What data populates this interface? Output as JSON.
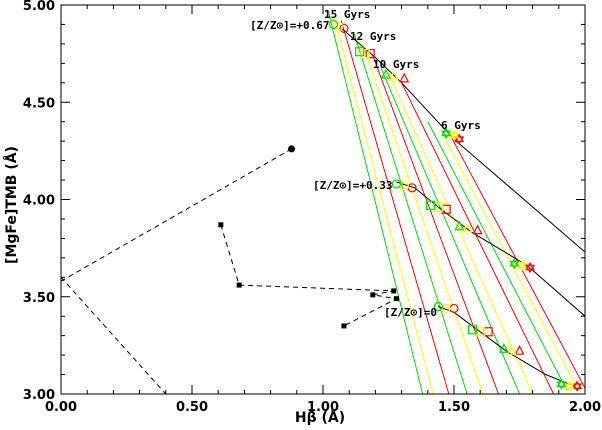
{
  "chart_data": {
    "type": "scatter",
    "xlabel": "Hβ (Å)",
    "ylabel": "[MgFe]TMB (Å)",
    "xlim": [
      0.0,
      2.0
    ],
    "ylim": [
      3.0,
      5.0
    ],
    "x_ticks": [
      "0.00",
      "0.50",
      "1.00",
      "1.50",
      "2.00"
    ],
    "y_ticks": [
      "3.00",
      "3.50",
      "4.00",
      "4.50",
      "5.00"
    ],
    "grid": false,
    "annotations": {
      "age_15": "15 Gyrs",
      "age_12": "12 Gyrs",
      "age_10": "10 Gyrs",
      "age_6": "6 Gyrs",
      "met_067": "[Z/Z⊙]=+0.67",
      "met_033": "[Z/Z⊙]=+0.33",
      "met_0": "[Z/Z⊙]=0"
    },
    "colors": {
      "red": "#ff0000",
      "yellow": "#ffff00",
      "green": "#00e000",
      "black": "#000000"
    },
    "model_lines": [
      {
        "color": "#00e000",
        "points": [
          [
            1.02,
            4.97
          ],
          [
            1.38,
            3.0
          ]
        ]
      },
      {
        "color": "#ffff00",
        "points": [
          [
            1.04,
            4.95
          ],
          [
            1.42,
            3.0
          ]
        ]
      },
      {
        "color": "#ff0000",
        "points": [
          [
            1.07,
            4.92
          ],
          [
            1.48,
            3.0
          ]
        ]
      },
      {
        "color": "#00e000",
        "points": [
          [
            1.12,
            4.85
          ],
          [
            1.55,
            3.0
          ]
        ]
      },
      {
        "color": "#ffff00",
        "points": [
          [
            1.15,
            4.8
          ],
          [
            1.61,
            3.0
          ]
        ]
      },
      {
        "color": "#ff0000",
        "points": [
          [
            1.19,
            4.74
          ],
          [
            1.67,
            3.0
          ]
        ]
      },
      {
        "color": "#00e000",
        "points": [
          [
            1.22,
            4.68
          ],
          [
            1.75,
            3.0
          ]
        ]
      },
      {
        "color": "#ffff00",
        "points": [
          [
            1.25,
            4.65
          ],
          [
            1.8,
            3.0
          ]
        ]
      },
      {
        "color": "#ff0000",
        "points": [
          [
            1.3,
            4.6
          ],
          [
            1.88,
            3.0
          ]
        ]
      },
      {
        "color": "#00e000",
        "points": [
          [
            1.4,
            4.4
          ],
          [
            1.93,
            3.02
          ]
        ]
      },
      {
        "color": "#ffff00",
        "points": [
          [
            1.45,
            4.35
          ],
          [
            1.97,
            3.03
          ]
        ]
      },
      {
        "color": "#ff0000",
        "points": [
          [
            1.49,
            4.32
          ],
          [
            2.0,
            3.03
          ]
        ]
      }
    ],
    "iso_lines": [
      {
        "color": "#000000",
        "points": [
          [
            1.07,
            4.88
          ],
          [
            1.2,
            4.73
          ],
          [
            1.3,
            4.6
          ],
          [
            1.5,
            4.31
          ],
          [
            2.0,
            3.73
          ]
        ]
      },
      {
        "color": "#000000",
        "points": [
          [
            1.28,
            4.09
          ],
          [
            1.35,
            4.06
          ],
          [
            1.45,
            3.95
          ],
          [
            1.57,
            3.83
          ],
          [
            1.78,
            3.66
          ],
          [
            2.0,
            3.4
          ]
        ]
      },
      {
        "color": "#000000",
        "points": [
          [
            1.44,
            3.45
          ],
          [
            1.5,
            3.42
          ],
          [
            1.6,
            3.32
          ],
          [
            1.7,
            3.22
          ],
          [
            1.85,
            3.1
          ],
          [
            1.96,
            3.04
          ]
        ]
      }
    ],
    "model_markers": [
      {
        "shape": "circle",
        "color": "#ff0000",
        "x": 1.08,
        "y": 4.88
      },
      {
        "shape": "square",
        "color": "#ff0000",
        "x": 1.18,
        "y": 4.75
      },
      {
        "shape": "triangle",
        "color": "#ff0000",
        "x": 1.31,
        "y": 4.62
      },
      {
        "shape": "star",
        "color": "#ff0000",
        "x": 1.52,
        "y": 4.31
      },
      {
        "shape": "circle",
        "color": "#ff0000",
        "x": 1.34,
        "y": 4.06
      },
      {
        "shape": "square",
        "color": "#ff0000",
        "x": 1.47,
        "y": 3.95
      },
      {
        "shape": "triangle",
        "color": "#ff0000",
        "x": 1.59,
        "y": 3.84
      },
      {
        "shape": "star",
        "color": "#ff0000",
        "x": 1.79,
        "y": 3.65
      },
      {
        "shape": "circle",
        "color": "#ff0000",
        "x": 1.5,
        "y": 3.44
      },
      {
        "shape": "square",
        "color": "#ff0000",
        "x": 1.63,
        "y": 3.32
      },
      {
        "shape": "triangle",
        "color": "#ff0000",
        "x": 1.75,
        "y": 3.22
      },
      {
        "shape": "star",
        "color": "#ff0000",
        "x": 1.97,
        "y": 3.04
      },
      {
        "shape": "circle",
        "color": "#ffff00",
        "x": 1.06,
        "y": 4.89
      },
      {
        "shape": "square",
        "color": "#ffff00",
        "x": 1.16,
        "y": 4.75
      },
      {
        "shape": "triangle",
        "color": "#ffff00",
        "x": 1.27,
        "y": 4.63
      },
      {
        "shape": "star",
        "color": "#ffff00",
        "x": 1.5,
        "y": 4.33
      },
      {
        "shape": "circle",
        "color": "#ffff00",
        "x": 1.31,
        "y": 4.07
      },
      {
        "shape": "square",
        "color": "#ffff00",
        "x": 1.44,
        "y": 3.96
      },
      {
        "shape": "triangle",
        "color": "#ffff00",
        "x": 1.55,
        "y": 3.85
      },
      {
        "shape": "star",
        "color": "#ffff00",
        "x": 1.76,
        "y": 3.66
      },
      {
        "shape": "circle",
        "color": "#ffff00",
        "x": 1.47,
        "y": 3.44
      },
      {
        "shape": "square",
        "color": "#ffff00",
        "x": 1.6,
        "y": 3.32
      },
      {
        "shape": "triangle",
        "color": "#ffff00",
        "x": 1.72,
        "y": 3.22
      },
      {
        "shape": "star",
        "color": "#ffff00",
        "x": 1.94,
        "y": 3.04
      },
      {
        "shape": "circle",
        "color": "#00e000",
        "x": 1.04,
        "y": 4.9
      },
      {
        "shape": "square",
        "color": "#00e000",
        "x": 1.14,
        "y": 4.76
      },
      {
        "shape": "triangle",
        "color": "#00e000",
        "x": 1.24,
        "y": 4.64
      },
      {
        "shape": "star",
        "color": "#00e000",
        "x": 1.47,
        "y": 4.34
      },
      {
        "shape": "circle",
        "color": "#00e000",
        "x": 1.28,
        "y": 4.08
      },
      {
        "shape": "square",
        "color": "#00e000",
        "x": 1.41,
        "y": 3.97
      },
      {
        "shape": "triangle",
        "color": "#00e000",
        "x": 1.52,
        "y": 3.86
      },
      {
        "shape": "star",
        "color": "#00e000",
        "x": 1.73,
        "y": 3.67
      },
      {
        "shape": "circle",
        "color": "#00e000",
        "x": 1.44,
        "y": 3.45
      },
      {
        "shape": "square",
        "color": "#00e000",
        "x": 1.57,
        "y": 3.33
      },
      {
        "shape": "triangle",
        "color": "#00e000",
        "x": 1.69,
        "y": 3.23
      },
      {
        "shape": "star",
        "color": "#00e000",
        "x": 1.91,
        "y": 3.05
      }
    ],
    "observed_points": [
      {
        "shape": "circle",
        "x": 0.88,
        "y": 4.26
      },
      {
        "shape": "square",
        "x": 0.61,
        "y": 3.87
      },
      {
        "shape": "square",
        "x": 0.68,
        "y": 3.56
      },
      {
        "shape": "square",
        "x": 1.19,
        "y": 3.51
      },
      {
        "shape": "square",
        "x": 1.27,
        "y": 3.53
      },
      {
        "shape": "square",
        "x": 1.28,
        "y": 3.49
      },
      {
        "shape": "square",
        "x": 1.08,
        "y": 3.35
      }
    ],
    "dashed_lines": [
      {
        "points": [
          [
            0.88,
            4.26
          ],
          [
            0.0,
            3.58
          ]
        ]
      },
      {
        "points": [
          [
            0.61,
            3.87
          ],
          [
            0.68,
            3.56
          ],
          [
            1.27,
            3.53
          ],
          [
            1.19,
            3.51
          ],
          [
            1.28,
            3.49
          ],
          [
            1.08,
            3.35
          ]
        ]
      },
      {
        "points": [
          [
            0.0,
            3.6
          ],
          [
            0.4,
            3.0
          ]
        ]
      }
    ]
  }
}
